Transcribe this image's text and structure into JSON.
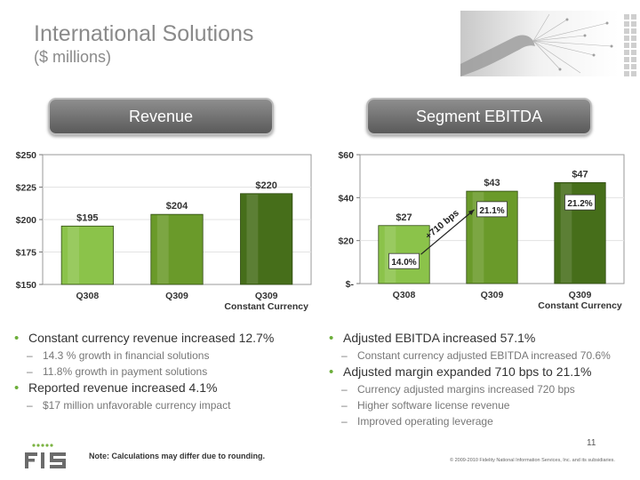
{
  "header": {
    "title": "International Solutions",
    "subtitle": "($ millions)"
  },
  "revenue_pill": "Revenue",
  "ebitda_pill": "Segment EBITDA",
  "chart_data": [
    {
      "type": "bar",
      "categories": [
        "Q308",
        "Q309",
        "Q309\nConstant Currency"
      ],
      "values": [
        195,
        204,
        220
      ],
      "value_labels": [
        "$195",
        "$204",
        "$220"
      ],
      "ylim": [
        150,
        250
      ],
      "yticks": [
        150,
        175,
        200,
        225,
        250
      ],
      "ytick_labels": [
        "$150",
        "$175",
        "$200",
        "$225",
        "$250"
      ],
      "colors": [
        "#8bc34a",
        "#6a9a2a",
        "#466e1a"
      ]
    },
    {
      "type": "bar",
      "categories": [
        "Q308",
        "Q309",
        "Q309\nConstant Currency"
      ],
      "values": [
        27,
        43,
        47
      ],
      "value_labels": [
        "$27",
        "$43",
        "$47"
      ],
      "margin_labels": [
        "14.0%",
        "21.1%",
        "21.2%"
      ],
      "annotation": "+710 bps",
      "ylim": [
        0,
        60
      ],
      "yticks": [
        0,
        20,
        40,
        60
      ],
      "ytick_labels": [
        "$-",
        "$20",
        "$40",
        "$60"
      ],
      "colors": [
        "#8bc34a",
        "#6a9a2a",
        "#466e1a"
      ]
    }
  ],
  "left_bullets": [
    {
      "level": 1,
      "text": "Constant currency revenue increased 12.7%"
    },
    {
      "level": 2,
      "text": "14.3 % growth in financial solutions"
    },
    {
      "level": 2,
      "text": "11.8% growth in payment solutions"
    },
    {
      "level": 1,
      "text": "Reported revenue increased 4.1%"
    },
    {
      "level": 2,
      "text": "$17 million unfavorable currency impact"
    }
  ],
  "right_bullets": [
    {
      "level": 1,
      "text": "Adjusted EBITDA increased 57.1%"
    },
    {
      "level": 2,
      "text": "Constant currency adjusted EBITDA increased 70.6%"
    },
    {
      "level": 1,
      "text": "Adjusted margin expanded 710 bps to 21.1%"
    },
    {
      "level": 2,
      "text": "Currency adjusted margins increased 720 bps"
    },
    {
      "level": 2,
      "text": "Higher software license revenue"
    },
    {
      "level": 2,
      "text": "Improved operating leverage"
    }
  ],
  "footer": {
    "page_number": "11",
    "note": "Note: Calculations may differ due to rounding.",
    "copyright": "© 2009-2010 Fidelity National Information Services, Inc. and its subsidiaries."
  }
}
